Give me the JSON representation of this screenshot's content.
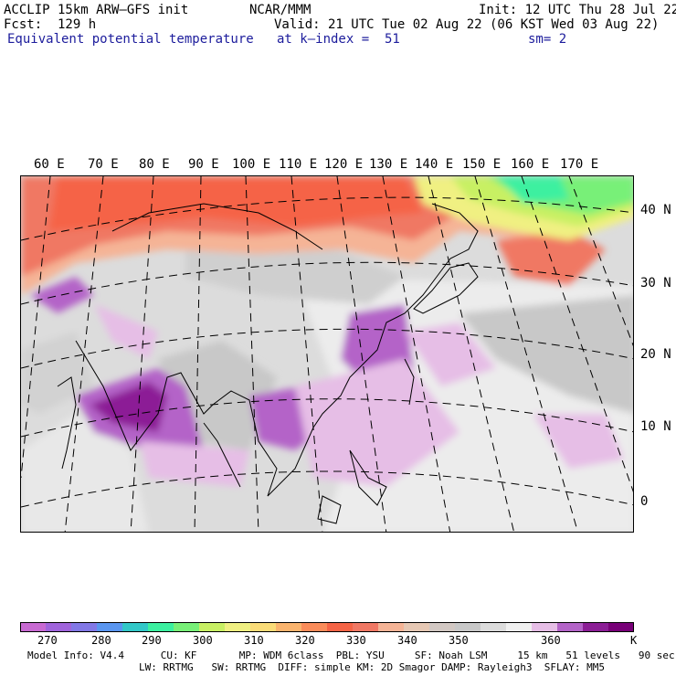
{
  "header": {
    "model": "ACCLIP 15km ARW–GFS init",
    "center": "NCAR/MMM",
    "init": "Init: 12 UTC Thu 28 Jul 22",
    "fcst": "Fcst:  129 h",
    "valid": "Valid: 21 UTC Tue 02 Aug 22 (06 KST Wed 03 Aug 22)",
    "field": "Equivalent potential temperature",
    "level": "at k–index =  51",
    "smooth": "sm= 2"
  },
  "map": {
    "longitude_labels": [
      "60 E",
      "70 E",
      "80 E",
      "90 E",
      "100 E",
      "110 E",
      "120 E",
      "130 E",
      "140 E",
      "150 E",
      "160 E",
      "170 E"
    ],
    "latitude_labels": [
      "40 N",
      "30 N",
      "20 N",
      "10 N",
      "0"
    ]
  },
  "colorbar": {
    "colors": [
      "#c86ad2",
      "#a064dc",
      "#8278e6",
      "#5a96f0",
      "#32c8c8",
      "#3cf0a0",
      "#78f078",
      "#c8f064",
      "#f0f082",
      "#fadc78",
      "#fab46e",
      "#fa8c5a",
      "#f56446",
      "#f07864",
      "#f5b496",
      "#e6c8b4",
      "#d2c8c3",
      "#c8c8c8",
      "#dcdcdc",
      "#f0f0f0",
      "#e6bee6",
      "#b464c8",
      "#8c1e96",
      "#780078"
    ],
    "tick_labels": [
      "270",
      "280",
      "290",
      "300",
      "310",
      "320",
      "330",
      "340",
      "350",
      "360"
    ],
    "unit": "K"
  },
  "model_info": {
    "line1": "Model Info: V4.4      CU: KF       MP: WDM 6class  PBL: YSU     SF: Noah LSM     15 km   51 levels   90 sec",
    "line2": "LW: RRTMG   SW: RRTMG  DIFF: simple KM: 2D Smagor DAMP: Rayleigh3  SFLAY: MM5"
  }
}
